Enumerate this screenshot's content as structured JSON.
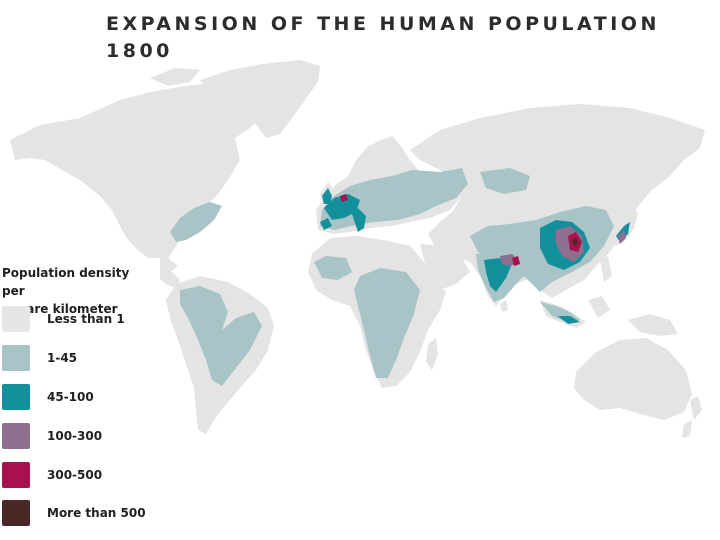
{
  "title": {
    "line1": "EXPANSION OF THE HUMAN POPULATION",
    "line2": "1800"
  },
  "colors": {
    "land": "#e4e4e4",
    "ocean": "#ffffff"
  },
  "legend": {
    "heading_line1": "Population density per",
    "heading_line2": "square kilometer",
    "items": [
      {
        "label": "Less than 1",
        "color": "#e6e6e6"
      },
      {
        "label": "1-45",
        "color": "#a8c4c6"
      },
      {
        "label": "45-100",
        "color": "#14909c"
      },
      {
        "label": "100-300",
        "color": "#8f6f8f"
      },
      {
        "label": "300-500",
        "color": "#a8104e"
      },
      {
        "label": "More than 500",
        "color": "#4a2828"
      }
    ]
  }
}
